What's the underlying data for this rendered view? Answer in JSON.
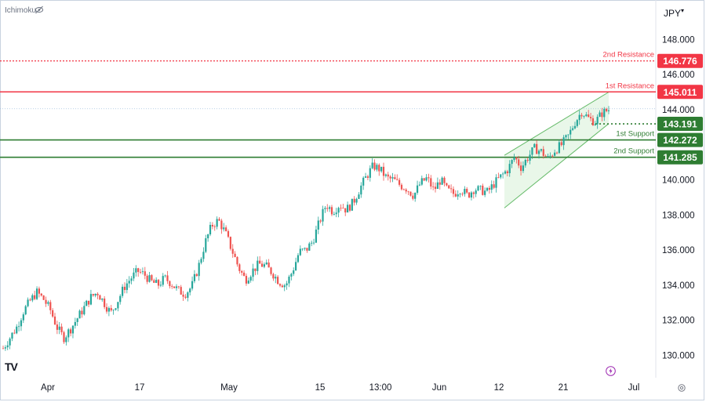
{
  "header": {
    "indicator_label": "Ichimoku",
    "visibility_icon": "eye-off-icon"
  },
  "axis_currency": "JPY",
  "footer": {
    "tv_logo": "TV",
    "lightning_icon": "lightning-icon",
    "settings_icon": "settings-icon"
  },
  "colors": {
    "up": "#26a69a",
    "down": "#ef5350",
    "resistance": "#f23645",
    "support": "#2e7d32",
    "channel_fill": "#d7f0d7",
    "channel_line": "#66bb6a"
  },
  "chart_data": {
    "type": "candlestick",
    "instrument_currency": "JPY",
    "ylim": [
      129.2,
      149.6
    ],
    "y_ticks": [
      "130.000",
      "132.000",
      "134.000",
      "136.000",
      "138.000",
      "140.000",
      "144.000",
      "146.000",
      "148.000"
    ],
    "x_ticks": [
      "Apr",
      "17",
      "May",
      "15",
      "13:00",
      "Jun",
      "12",
      "21",
      "Jul"
    ],
    "current_price": "143.191",
    "levels": [
      {
        "name": "2nd Resistance",
        "value": "146.776",
        "kind": "resistance",
        "style": "dotted"
      },
      {
        "name": "1st Resistance",
        "value": "145.011",
        "kind": "resistance",
        "style": "solid"
      },
      {
        "name": "1st Support",
        "value": "142.272",
        "kind": "support",
        "style": "solid"
      },
      {
        "name": "2nd Support",
        "value": "141.285",
        "kind": "support",
        "style": "solid"
      }
    ],
    "price_path": [
      130.4,
      131.0,
      131.6,
      132.5,
      133.1,
      133.6,
      133.2,
      132.6,
      131.6,
      131.0,
      131.5,
      132.1,
      132.7,
      133.3,
      133.6,
      133.0,
      132.4,
      133.1,
      133.9,
      134.4,
      134.8,
      134.6,
      134.2,
      134.0,
      134.4,
      134.1,
      133.7,
      133.5,
      133.9,
      135.0,
      136.4,
      137.4,
      137.7,
      137.0,
      136.0,
      135.0,
      134.3,
      134.8,
      135.2,
      135.1,
      134.7,
      134.2,
      134.0,
      134.8,
      135.9,
      136.0,
      136.5,
      137.6,
      138.6,
      138.2,
      138.6,
      138.3,
      138.7,
      139.5,
      140.2,
      140.8,
      140.6,
      140.1,
      140.0,
      139.7,
      139.5,
      139.1,
      139.8,
      140.1,
      139.4,
      140.0,
      139.4,
      139.2,
      139.5,
      139.1,
      139.5,
      139.4,
      139.3,
      139.8,
      140.2,
      140.6,
      141.3,
      140.7,
      141.3,
      141.8,
      141.6,
      141.2,
      141.7,
      142.0,
      142.5,
      143.3,
      143.9,
      143.5,
      143.3,
      143.8,
      144.0
    ],
    "channel": {
      "lower_start": 138.4,
      "lower_end": 143.2,
      "upper_start": 141.4,
      "upper_end": 145.0
    }
  }
}
